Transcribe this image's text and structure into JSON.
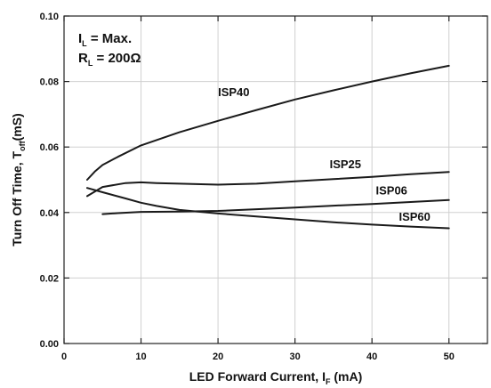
{
  "chart_data": {
    "type": "line",
    "xlabel": {
      "main": "LED Forward Current, I",
      "sub": "F",
      "tail": " (mA)"
    },
    "ylabel": {
      "main": "Turn Off Time, T",
      "sub": "off",
      "tail": "(mS)"
    },
    "xlim": [
      0,
      55
    ],
    "ylim": [
      0.0,
      0.1
    ],
    "xticks": [
      0,
      10,
      20,
      30,
      40,
      50
    ],
    "xtick_labels": [
      "0",
      "10",
      "20",
      "30",
      "40",
      "50"
    ],
    "yticks": [
      0.0,
      0.02,
      0.04,
      0.06,
      0.08,
      0.1
    ],
    "ytick_labels": [
      "0.00",
      "0.02",
      "0.04",
      "0.06",
      "0.08",
      "0.10"
    ],
    "grid": true,
    "annotations": [
      {
        "main": "I",
        "sub": "L",
        "tail": " = Max."
      },
      {
        "main": "R",
        "sub": "L",
        "tail": " = 200Ω"
      }
    ],
    "series": [
      {
        "name": "ISP40",
        "x": [
          3,
          4,
          5,
          7,
          10,
          15,
          20,
          25,
          30,
          35,
          40,
          45,
          50
        ],
        "y": [
          0.05,
          0.0525,
          0.0545,
          0.057,
          0.0605,
          0.0645,
          0.068,
          0.0713,
          0.0745,
          0.0773,
          0.08,
          0.0825,
          0.0848
        ]
      },
      {
        "name": "ISP25",
        "x": [
          3,
          5,
          8,
          10,
          12,
          15,
          20,
          25,
          30,
          35,
          40,
          45,
          50
        ],
        "y": [
          0.045,
          0.0478,
          0.049,
          0.0492,
          0.049,
          0.0488,
          0.0485,
          0.0488,
          0.0495,
          0.0502,
          0.0509,
          0.0517,
          0.0524
        ]
      },
      {
        "name": "ISP06",
        "x": [
          5,
          7,
          10,
          15,
          20,
          25,
          30,
          35,
          40,
          45,
          50
        ],
        "y": [
          0.0395,
          0.0398,
          0.0402,
          0.0403,
          0.0405,
          0.041,
          0.0415,
          0.0421,
          0.0426,
          0.0432,
          0.0438
        ]
      },
      {
        "name": "ISP60",
        "x": [
          3,
          5,
          8,
          10,
          12,
          15,
          20,
          25,
          30,
          35,
          40,
          45,
          50
        ],
        "y": [
          0.0475,
          0.0462,
          0.0443,
          0.043,
          0.042,
          0.0408,
          0.0397,
          0.0388,
          0.0379,
          0.037,
          0.0363,
          0.0357,
          0.0352
        ]
      }
    ],
    "series_labels": [
      {
        "text": "ISP40",
        "x": 20,
        "y": 0.0755
      },
      {
        "text": "ISP25",
        "x": 34.5,
        "y": 0.0535
      },
      {
        "text": "ISP06",
        "x": 40.5,
        "y": 0.0455
      },
      {
        "text": "ISP60",
        "x": 43.5,
        "y": 0.0375
      }
    ]
  }
}
